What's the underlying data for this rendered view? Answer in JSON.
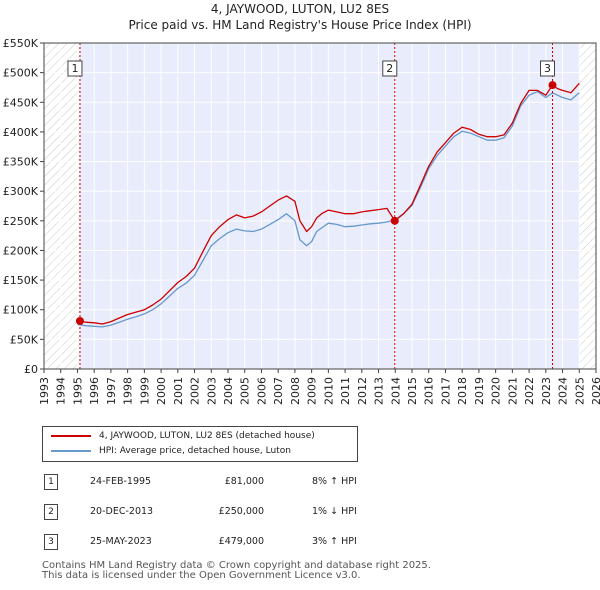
{
  "page": {
    "title_line1": "4, JAYWOOD, LUTON, LU2 8ES",
    "title_line2": "Price paid vs. HM Land Registry's House Price Index (HPI)"
  },
  "legend": {
    "property_label": "4, JAYWOOD, LUTON, LU2 8ES (detached house)",
    "hpi_label": "HPI: Average price, detached house, Luton"
  },
  "sales": [
    {
      "num": "1",
      "date": "24-FEB-1995",
      "price": "£81,000",
      "hpi": "8% ↑ HPI"
    },
    {
      "num": "2",
      "date": "20-DEC-2013",
      "price": "£250,000",
      "hpi": "1% ↓ HPI"
    },
    {
      "num": "3",
      "date": "25-MAY-2023",
      "price": "£479,000",
      "hpi": "3% ↑ HPI"
    }
  ],
  "footer": {
    "line1": "Contains HM Land Registry data © Crown copyright and database right 2025.",
    "line2": "This data is licensed under the Open Government Licence v3.0."
  },
  "colors": {
    "property": "#cc0000",
    "hpi": "#6699cc",
    "sale_region": "#e8ecfb",
    "marker_line": "#cc0000"
  },
  "chart_data": {
    "type": "line",
    "title": "Price paid vs. HM Land Registry's House Price Index (HPI)",
    "xlabel": "",
    "ylabel": "",
    "xlim": [
      1993,
      2026
    ],
    "ylim": [
      0,
      550000
    ],
    "x_ticks": [
      1993,
      1994,
      1995,
      1996,
      1997,
      1998,
      1999,
      2000,
      2001,
      2002,
      2003,
      2004,
      2005,
      2006,
      2007,
      2008,
      2009,
      2010,
      2011,
      2012,
      2013,
      2014,
      2015,
      2016,
      2017,
      2018,
      2019,
      2020,
      2021,
      2022,
      2023,
      2024,
      2025,
      2026
    ],
    "y_ticks": [
      {
        "value": 0,
        "label": "£0"
      },
      {
        "value": 50000,
        "label": "£50K"
      },
      {
        "value": 100000,
        "label": "£100K"
      },
      {
        "value": 150000,
        "label": "£150K"
      },
      {
        "value": 200000,
        "label": "£200K"
      },
      {
        "value": 250000,
        "label": "£250K"
      },
      {
        "value": 300000,
        "label": "£300K"
      },
      {
        "value": 350000,
        "label": "£350K"
      },
      {
        "value": 400000,
        "label": "£400K"
      },
      {
        "value": 450000,
        "label": "£450K"
      },
      {
        "value": 500000,
        "label": "£500K"
      },
      {
        "value": 550000,
        "label": "£550K"
      }
    ],
    "hatch_before": 1995.15,
    "hatch_after": 2025.0,
    "sale_markers": [
      {
        "label": "1",
        "x": 1995.15,
        "y": 81000
      },
      {
        "label": "2",
        "x": 2013.97,
        "y": 250000
      },
      {
        "label": "3",
        "x": 2023.4,
        "y": 479000
      }
    ],
    "series": [
      {
        "name": "4, JAYWOOD, LUTON, LU2 8ES (detached house)",
        "x": [
          1995.15,
          1995.5,
          1996,
          1996.5,
          1997,
          1997.5,
          1998,
          1998.5,
          1999,
          1999.5,
          2000,
          2000.5,
          2001,
          2001.5,
          2002,
          2002.5,
          2003,
          2003.5,
          2004,
          2004.5,
          2005,
          2005.5,
          2006,
          2006.5,
          2007,
          2007.5,
          2008,
          2008.3,
          2008.7,
          2009,
          2009.3,
          2009.6,
          2010,
          2010.5,
          2011,
          2011.5,
          2012,
          2012.5,
          2013,
          2013.5,
          2013.97,
          2014.5,
          2015,
          2015.5,
          2016,
          2016.5,
          2017,
          2017.5,
          2018,
          2018.5,
          2019,
          2019.5,
          2020,
          2020.5,
          2021,
          2021.5,
          2022,
          2022.5,
          2023,
          2023.4,
          2023.7,
          2024,
          2024.5,
          2025
        ],
        "values": [
          81000,
          79000,
          78000,
          76000,
          80000,
          86000,
          92000,
          96000,
          100000,
          108000,
          118000,
          132000,
          146000,
          156000,
          170000,
          198000,
          225000,
          240000,
          252000,
          260000,
          255000,
          258000,
          265000,
          275000,
          285000,
          292000,
          283000,
          250000,
          232000,
          240000,
          255000,
          262000,
          268000,
          265000,
          262000,
          262000,
          265000,
          267000,
          269000,
          271000,
          250000,
          262000,
          278000,
          310000,
          342000,
          366000,
          382000,
          398000,
          408000,
          404000,
          396000,
          392000,
          392000,
          395000,
          415000,
          448000,
          470000,
          470000,
          462000,
          479000,
          473000,
          470000,
          466000,
          482000
        ]
      },
      {
        "name": "HPI: Average price, detached house, Luton",
        "x": [
          1995.0,
          1995.5,
          1996,
          1996.5,
          1997,
          1997.5,
          1998,
          1998.5,
          1999,
          1999.5,
          2000,
          2000.5,
          2001,
          2001.5,
          2002,
          2002.5,
          2003,
          2003.5,
          2004,
          2004.5,
          2005,
          2005.5,
          2006,
          2006.5,
          2007,
          2007.5,
          2008,
          2008.3,
          2008.7,
          2009,
          2009.3,
          2009.6,
          2010,
          2010.5,
          2011,
          2011.5,
          2012,
          2012.5,
          2013,
          2013.5,
          2014,
          2014.5,
          2015,
          2015.5,
          2016,
          2016.5,
          2017,
          2017.5,
          2018,
          2018.5,
          2019,
          2019.5,
          2020,
          2020.5,
          2021,
          2021.5,
          2022,
          2022.5,
          2023,
          2023.4,
          2023.7,
          2024,
          2024.5,
          2025
        ],
        "values": [
          75000,
          73000,
          72000,
          71000,
          74000,
          79000,
          84000,
          88000,
          93000,
          100000,
          110000,
          123000,
          136000,
          145000,
          158000,
          183000,
          208000,
          220000,
          230000,
          236000,
          233000,
          232000,
          236000,
          244000,
          252000,
          262000,
          250000,
          218000,
          208000,
          215000,
          232000,
          238000,
          246000,
          244000,
          240000,
          241000,
          243000,
          245000,
          246000,
          248000,
          252000,
          262000,
          276000,
          306000,
          338000,
          360000,
          376000,
          392000,
          401000,
          398000,
          392000,
          386000,
          386000,
          390000,
          410000,
          444000,
          462000,
          468000,
          458000,
          466000,
          462000,
          458000,
          454000,
          466000
        ]
      }
    ]
  }
}
